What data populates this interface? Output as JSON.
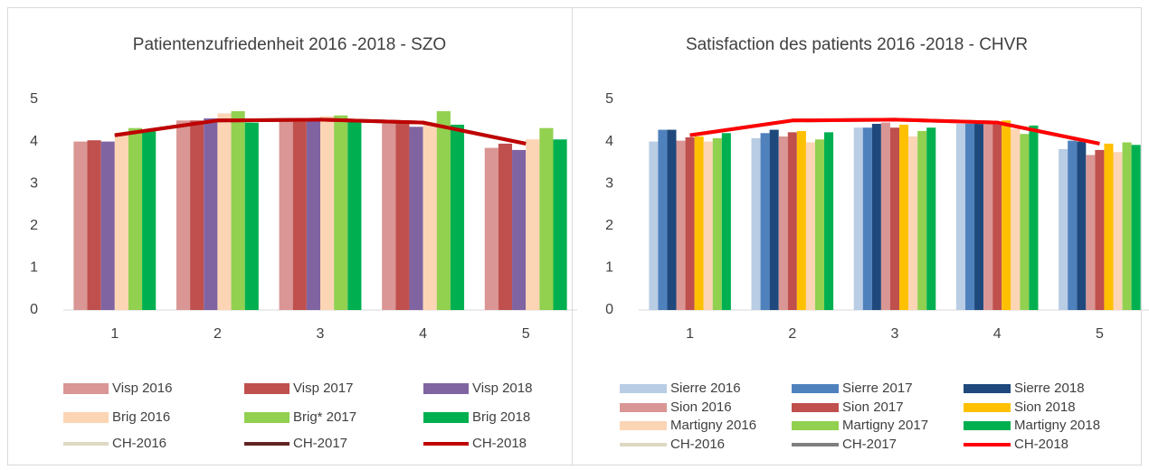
{
  "chart_data": [
    {
      "type": "bar",
      "title": "Patientenzufriedenheit 2016 -2018 - SZO",
      "categories": [
        "1",
        "2",
        "3",
        "4",
        "5"
      ],
      "ylim": [
        0,
        5
      ],
      "yticks": [
        0,
        1,
        2,
        3,
        4,
        5
      ],
      "series": [
        {
          "name": "Visp 2016",
          "color": "#d99694",
          "values": [
            4.0,
            4.5,
            4.5,
            4.45,
            3.85
          ]
        },
        {
          "name": "Visp 2017",
          "color": "#c0504d",
          "values": [
            4.03,
            4.5,
            4.5,
            4.45,
            3.95
          ]
        },
        {
          "name": "Visp 2018",
          "color": "#8064a2",
          "values": [
            4.0,
            4.55,
            4.55,
            4.35,
            3.8
          ]
        },
        {
          "name": "Brig 2016",
          "color": "#fcd5b5",
          "values": [
            4.15,
            4.67,
            4.6,
            4.45,
            4.05
          ]
        },
        {
          "name": "Brig* 2017",
          "color": "#92d050",
          "values": [
            4.32,
            4.72,
            4.62,
            4.72,
            4.32
          ]
        },
        {
          "name": "Brig 2018",
          "color": "#00b050",
          "values": [
            4.25,
            4.45,
            4.5,
            4.4,
            4.05
          ]
        },
        {
          "name": "CH-2016",
          "color": "#ddd9c3",
          "type": "line",
          "values": [
            4.15,
            4.5,
            4.52,
            4.45,
            3.95
          ]
        },
        {
          "name": "CH-2017",
          "color": "#632523",
          "type": "line",
          "values": [
            4.15,
            4.5,
            4.52,
            4.45,
            3.95
          ]
        },
        {
          "name": "CH-2018",
          "color": "#c00000",
          "type": "line",
          "values": [
            4.15,
            4.5,
            4.52,
            4.45,
            3.95
          ]
        }
      ]
    },
    {
      "type": "bar",
      "title": "Satisfaction des patients 2016 -2018 - CHVR",
      "categories": [
        "1",
        "2",
        "3",
        "4",
        "5"
      ],
      "ylim": [
        0,
        5
      ],
      "yticks": [
        0,
        1,
        2,
        3,
        4,
        5
      ],
      "series": [
        {
          "name": "Sierre 2016",
          "color": "#b9cde5",
          "values": [
            4.0,
            4.08,
            4.33,
            4.42,
            3.82
          ]
        },
        {
          "name": "Sierre 2017",
          "color": "#4f81bd",
          "values": [
            4.28,
            4.2,
            4.33,
            4.42,
            4.02
          ]
        },
        {
          "name": "Sierre 2018",
          "color": "#1f497d",
          "values": [
            4.28,
            4.28,
            4.42,
            4.42,
            4.0
          ]
        },
        {
          "name": "Sion 2016",
          "color": "#d99694",
          "values": [
            4.02,
            4.12,
            4.45,
            4.45,
            3.68
          ]
        },
        {
          "name": "Sion 2017",
          "color": "#c0504d",
          "values": [
            4.1,
            4.22,
            4.33,
            4.42,
            3.8
          ]
        },
        {
          "name": "Sion 2018",
          "color": "#ffc000",
          "values": [
            4.12,
            4.25,
            4.4,
            4.5,
            3.95
          ]
        },
        {
          "name": "Martigny 2016",
          "color": "#fcd5b5",
          "values": [
            4.0,
            3.98,
            4.12,
            4.3,
            3.75
          ]
        },
        {
          "name": "Martigny 2017",
          "color": "#92d050",
          "values": [
            4.08,
            4.05,
            4.25,
            4.18,
            3.98
          ]
        },
        {
          "name": "Martigny 2018",
          "color": "#00b050",
          "values": [
            4.2,
            4.22,
            4.33,
            4.38,
            3.92
          ]
        },
        {
          "name": "CH-2016",
          "color": "#ddd9c3",
          "type": "line",
          "values": [
            4.15,
            4.5,
            4.52,
            4.45,
            3.95
          ]
        },
        {
          "name": "CH-2017",
          "color": "#7f7f7f",
          "type": "line",
          "values": [
            4.15,
            4.5,
            4.52,
            4.45,
            3.95
          ]
        },
        {
          "name": "CH-2018",
          "color": "#ff0000",
          "type": "line",
          "values": [
            4.15,
            4.5,
            4.52,
            4.45,
            3.95
          ]
        }
      ]
    }
  ]
}
